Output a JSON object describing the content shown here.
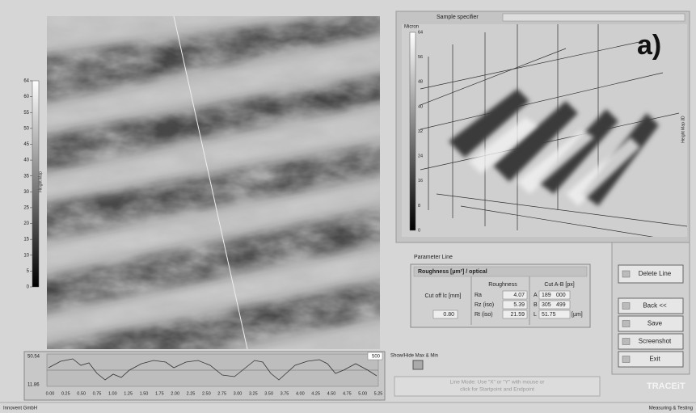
{
  "left_panel": {
    "colorbar_label": "Height Map",
    "colorbar_ticks": [
      "64",
      "60",
      "55",
      "50",
      "45",
      "40",
      "35",
      "30",
      "25",
      "20",
      "15",
      "10",
      "5",
      "0"
    ]
  },
  "profile": {
    "max": "50.54",
    "min": "11.86",
    "end": "500",
    "x_ticks": [
      "0.00",
      "0.25",
      "0.50",
      "0.75",
      "1.00",
      "1.25",
      "1.50",
      "1.75",
      "2.00",
      "2.25",
      "2.50",
      "2.75",
      "3.00",
      "3.25",
      "3.50",
      "3.75",
      "4.00",
      "4.25",
      "4.50",
      "4.75",
      "5.00",
      "5.25"
    ]
  },
  "show_hide_label": "Show/Hide Max & Min",
  "view_3d": {
    "sample_specifier_label": "Sample specifier",
    "unit": "Micron",
    "panel_label": "a)",
    "side_label": "Height Map 3D",
    "colorbar_ticks": [
      "64",
      "56",
      "48",
      "40",
      "32",
      "24",
      "16",
      "8",
      "0"
    ]
  },
  "parameter_line": {
    "title": "Parameter Line",
    "table_title": "Roughness [µm²] / optical",
    "cutoff_label": "Cut off lc [mm]",
    "cutoff_value": "0.80",
    "roughness_header": "Roughness",
    "rows": [
      {
        "name": "Ra",
        "value": "4.07"
      },
      {
        "name": "Rz (iso)",
        "value": "5.39"
      },
      {
        "name": "Rt (iso)",
        "value": "21.59"
      }
    ],
    "cut_header": "Cut A-B [px]",
    "cut_rows": [
      {
        "name": "A",
        "x": "189",
        "y": "000"
      },
      {
        "name": "B",
        "x": "305",
        "y": "499"
      },
      {
        "name": "L",
        "x": "51.75",
        "unit": "[µm]"
      }
    ]
  },
  "buttons": [
    "Delete Line",
    "Back <<",
    "Save",
    "Screenshot",
    "Exit"
  ],
  "hint": [
    "Line Mode: Use \"X\" or \"Y\" with mouse or",
    "click for Startpoint and Endpoint"
  ],
  "brand": "TRACEiT",
  "footer": {
    "left": "Innovent GmbH",
    "right": "Measuring & Testing"
  }
}
